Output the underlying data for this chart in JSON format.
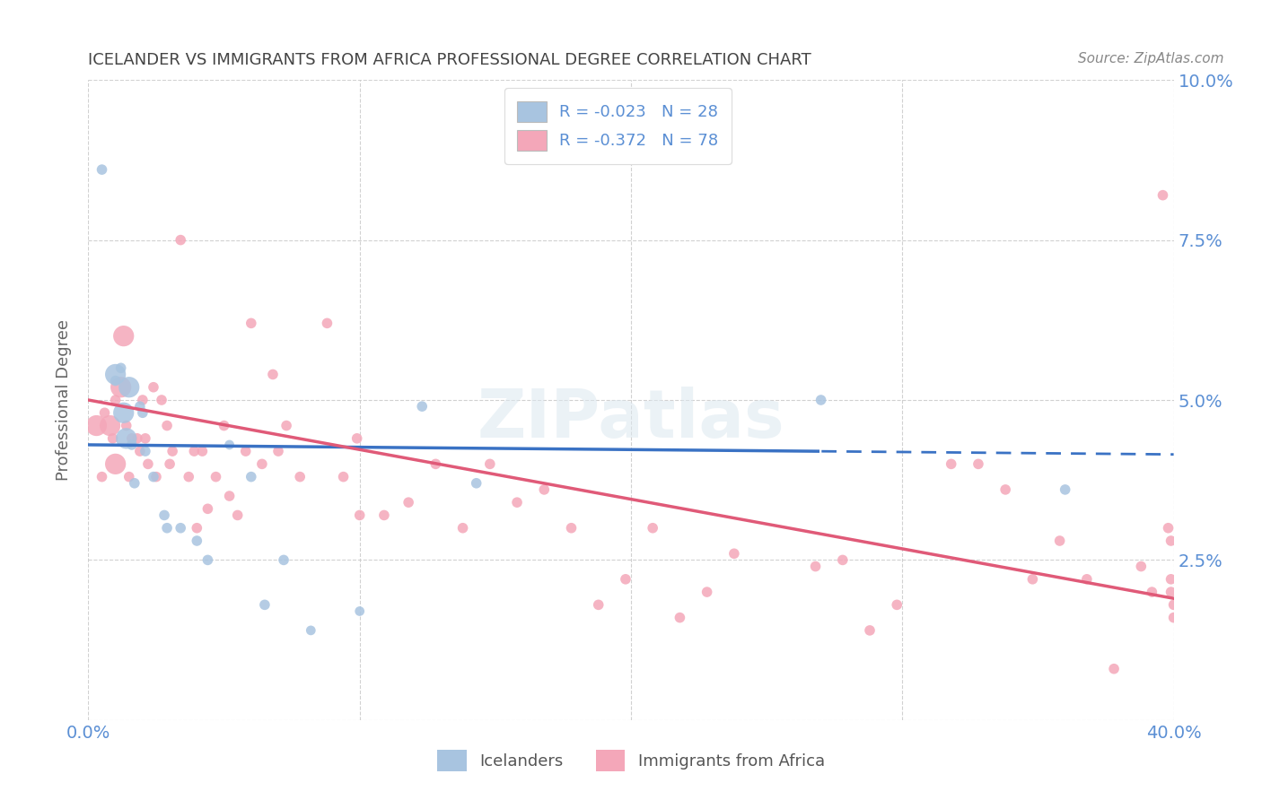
{
  "title": "ICELANDER VS IMMIGRANTS FROM AFRICA PROFESSIONAL DEGREE CORRELATION CHART",
  "source": "Source: ZipAtlas.com",
  "ylabel": "Professional Degree",
  "xlim": [
    0.0,
    0.4
  ],
  "ylim": [
    0.0,
    0.1
  ],
  "xtick_vals": [
    0.0,
    0.1,
    0.2,
    0.3,
    0.4
  ],
  "ytick_vals": [
    0.0,
    0.025,
    0.05,
    0.075,
    0.1
  ],
  "x_left_label": "0.0%",
  "x_right_label": "40.0%",
  "y_right_labels": [
    "",
    "2.5%",
    "5.0%",
    "7.5%",
    "10.0%"
  ],
  "legend1_label": "R = -0.023   N = 28",
  "legend2_label": "R = -0.372   N = 78",
  "legend_bottom1": "Icelanders",
  "legend_bottom2": "Immigrants from Africa",
  "blue_color": "#a8c4e0",
  "pink_color": "#f4a7b9",
  "blue_line_color": "#3a72c4",
  "pink_line_color": "#e05a78",
  "axis_color": "#5b8fd4",
  "text_color": "#444444",
  "source_color": "#888888",
  "watermark": "ZIPatlas",
  "grid_color": "#cccccc",
  "blue_x": [
    0.005,
    0.01,
    0.01,
    0.012,
    0.013,
    0.014,
    0.015,
    0.016,
    0.017,
    0.019,
    0.02,
    0.021,
    0.024,
    0.028,
    0.029,
    0.034,
    0.04,
    0.044,
    0.052,
    0.06,
    0.065,
    0.072,
    0.082,
    0.1,
    0.123,
    0.143,
    0.27,
    0.36
  ],
  "blue_y": [
    0.086,
    0.054,
    0.053,
    0.055,
    0.048,
    0.044,
    0.052,
    0.043,
    0.037,
    0.049,
    0.048,
    0.042,
    0.038,
    0.032,
    0.03,
    0.03,
    0.028,
    0.025,
    0.043,
    0.038,
    0.018,
    0.025,
    0.014,
    0.017,
    0.049,
    0.037,
    0.05,
    0.036
  ],
  "blue_sizes": [
    70,
    280,
    70,
    70,
    280,
    280,
    280,
    70,
    70,
    70,
    70,
    70,
    70,
    70,
    70,
    70,
    70,
    70,
    60,
    70,
    70,
    70,
    60,
    60,
    70,
    70,
    70,
    70
  ],
  "pink_x": [
    0.003,
    0.005,
    0.006,
    0.008,
    0.009,
    0.01,
    0.01,
    0.012,
    0.013,
    0.014,
    0.015,
    0.016,
    0.018,
    0.019,
    0.02,
    0.021,
    0.022,
    0.024,
    0.025,
    0.027,
    0.029,
    0.03,
    0.031,
    0.034,
    0.037,
    0.039,
    0.04,
    0.042,
    0.044,
    0.047,
    0.05,
    0.052,
    0.055,
    0.058,
    0.06,
    0.064,
    0.068,
    0.07,
    0.073,
    0.078,
    0.088,
    0.094,
    0.099,
    0.1,
    0.109,
    0.118,
    0.128,
    0.138,
    0.148,
    0.158,
    0.168,
    0.178,
    0.188,
    0.198,
    0.208,
    0.218,
    0.228,
    0.238,
    0.268,
    0.278,
    0.288,
    0.298,
    0.318,
    0.328,
    0.338,
    0.348,
    0.358,
    0.368,
    0.378,
    0.388,
    0.392,
    0.396,
    0.398,
    0.399,
    0.399,
    0.399,
    0.4,
    0.4
  ],
  "pink_y": [
    0.046,
    0.038,
    0.048,
    0.046,
    0.044,
    0.05,
    0.04,
    0.052,
    0.06,
    0.046,
    0.038,
    0.044,
    0.044,
    0.042,
    0.05,
    0.044,
    0.04,
    0.052,
    0.038,
    0.05,
    0.046,
    0.04,
    0.042,
    0.075,
    0.038,
    0.042,
    0.03,
    0.042,
    0.033,
    0.038,
    0.046,
    0.035,
    0.032,
    0.042,
    0.062,
    0.04,
    0.054,
    0.042,
    0.046,
    0.038,
    0.062,
    0.038,
    0.044,
    0.032,
    0.032,
    0.034,
    0.04,
    0.03,
    0.04,
    0.034,
    0.036,
    0.03,
    0.018,
    0.022,
    0.03,
    0.016,
    0.02,
    0.026,
    0.024,
    0.025,
    0.014,
    0.018,
    0.04,
    0.04,
    0.036,
    0.022,
    0.028,
    0.022,
    0.008,
    0.024,
    0.02,
    0.082,
    0.03,
    0.028,
    0.022,
    0.02,
    0.016,
    0.018
  ],
  "pink_sizes": [
    280,
    70,
    70,
    280,
    70,
    70,
    280,
    280,
    280,
    70,
    70,
    70,
    70,
    70,
    70,
    70,
    70,
    70,
    70,
    70,
    70,
    70,
    70,
    70,
    70,
    70,
    70,
    70,
    70,
    70,
    70,
    70,
    70,
    70,
    70,
    70,
    70,
    70,
    70,
    70,
    70,
    70,
    70,
    70,
    70,
    70,
    70,
    70,
    70,
    70,
    70,
    70,
    70,
    70,
    70,
    70,
    70,
    70,
    70,
    70,
    70,
    70,
    70,
    70,
    70,
    70,
    70,
    70,
    70,
    70,
    70,
    70,
    70,
    70,
    70,
    70,
    70,
    70
  ]
}
